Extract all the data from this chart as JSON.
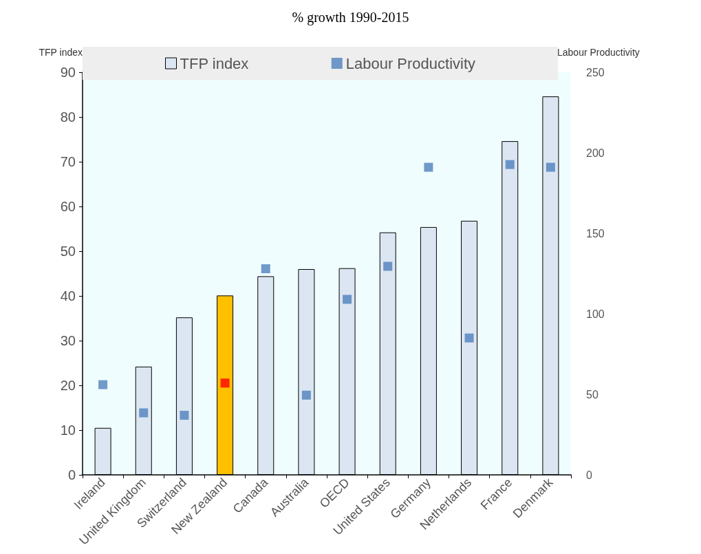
{
  "chart_data": {
    "type": "bar",
    "title": "% growth 1990-2015",
    "ylabel": "TFP index",
    "y2label": "Labour Productivity",
    "categories": [
      "Ireland",
      "United Kingdom",
      "Switzerland",
      "New Zealand",
      "Canada",
      "Australia",
      "OECD",
      "United States",
      "Germany",
      "Netherlands",
      "France",
      "Denmark"
    ],
    "series": [
      {
        "name": "TFP index",
        "color": "#dce6f2",
        "colors": [
          "#dce6f2",
          "#dce6f2",
          "#dce6f2",
          "#ffc000",
          "#dce6f2",
          "#dce6f2",
          "#dce6f2",
          "#dce6f2",
          "#dce6f2",
          "#dce6f2",
          "#dce6f2",
          "#dce6f2"
        ],
        "values": [
          10.5,
          24.2,
          35.2,
          40.1,
          44.4,
          46.0,
          46.2,
          54.2,
          55.4,
          56.8,
          74.6,
          84.6
        ]
      },
      {
        "name": "Labour Productivity",
        "type": "scatter",
        "axis": "y2",
        "color": "#4f81bd",
        "colors": [
          "#4f81bd",
          "#4f81bd",
          "#4f81bd",
          "#ff0000",
          "#4f81bd",
          "#4f81bd",
          "#4f81bd",
          "#4f81bd",
          "#4f81bd",
          "#4f81bd",
          "#4f81bd",
          "#4f81bd"
        ],
        "values": [
          56,
          38.5,
          37,
          57,
          128,
          49.5,
          109,
          129.5,
          191,
          85,
          192.7,
          191
        ]
      }
    ],
    "ylim": [
      0,
      90
    ],
    "yticks": [
      0,
      10,
      20,
      30,
      40,
      50,
      60,
      70,
      80,
      90
    ],
    "y2lim": [
      0,
      250
    ],
    "y2ticks": [
      0,
      50,
      100,
      150,
      200,
      250
    ],
    "legend": "top",
    "marker": "square"
  }
}
